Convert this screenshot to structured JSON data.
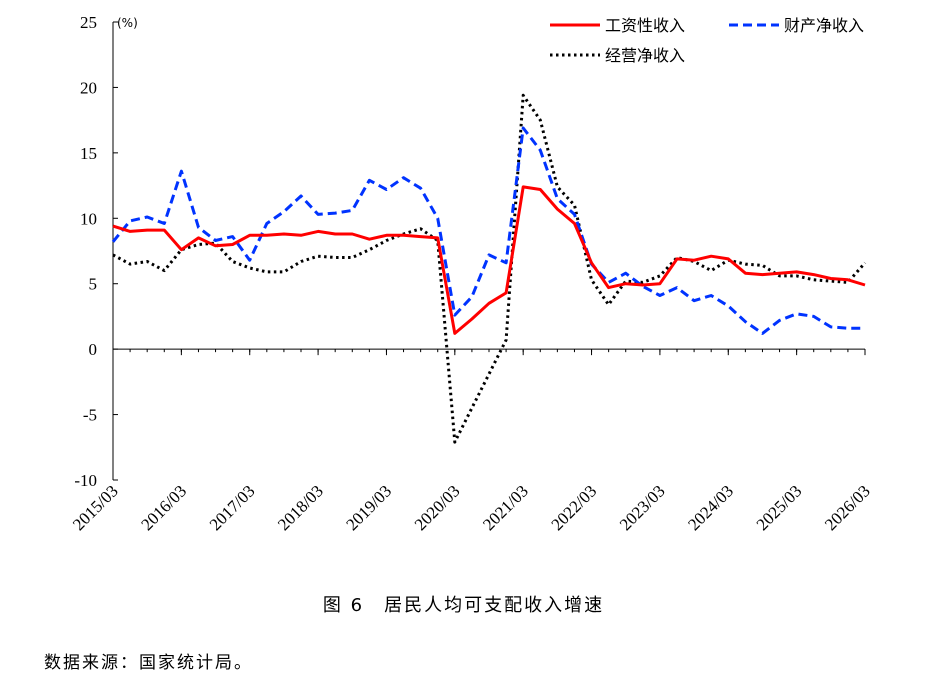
{
  "chart_data": {
    "type": "line",
    "title": "图 6　居民人均可支配收入增速",
    "unit": "(%)",
    "ylim": [
      -10,
      25
    ],
    "yticks": [
      25,
      20,
      15,
      10,
      5,
      0,
      -5,
      -10
    ],
    "xticks": [
      "2015/03",
      "2016/03",
      "2017/03",
      "2018/03",
      "2019/03",
      "2020/03",
      "2021/03",
      "2022/03",
      "2023/03",
      "2024/03",
      "2025/03",
      "2026/03"
    ],
    "x": [
      "2015/03",
      "2015/06",
      "2015/09",
      "2015/12",
      "2016/03",
      "2016/06",
      "2016/09",
      "2016/12",
      "2017/03",
      "2017/06",
      "2017/09",
      "2017/12",
      "2018/03",
      "2018/06",
      "2018/09",
      "2018/12",
      "2019/03",
      "2019/06",
      "2019/09",
      "2019/12",
      "2020/03",
      "2020/06",
      "2020/09",
      "2020/12",
      "2021/03",
      "2021/06",
      "2021/09",
      "2021/12",
      "2022/03",
      "2022/06",
      "2022/09",
      "2022/12",
      "2023/03",
      "2023/06",
      "2023/09",
      "2023/12",
      "2024/03",
      "2024/06",
      "2024/09",
      "2024/12",
      "2025/03",
      "2025/06",
      "2025/09",
      "2025/12",
      "2026/03"
    ],
    "legend_position": "top-right",
    "series": [
      {
        "name": "工资性收入",
        "color": "#ff0000",
        "style": "solid",
        "values": [
          9.4,
          9.0,
          9.1,
          9.1,
          7.6,
          8.5,
          7.9,
          8.0,
          8.7,
          8.7,
          8.8,
          8.7,
          9.0,
          8.8,
          8.8,
          8.4,
          8.7,
          8.7,
          8.6,
          8.5,
          1.2,
          2.3,
          3.5,
          4.3,
          12.4,
          12.2,
          10.7,
          9.6,
          6.6,
          4.7,
          5.0,
          4.9,
          5.0,
          6.9,
          6.8,
          7.1,
          6.9,
          5.8,
          5.7,
          5.8,
          5.9,
          5.7,
          5.4,
          5.3,
          4.9
        ]
      },
      {
        "name": "财产净收入",
        "color": "#0033ff",
        "style": "dashed",
        "values": [
          8.2,
          9.8,
          10.1,
          9.6,
          13.6,
          9.3,
          8.3,
          8.6,
          6.8,
          9.6,
          10.5,
          11.7,
          10.3,
          10.4,
          10.6,
          12.9,
          12.2,
          13.1,
          12.3,
          10.0,
          2.6,
          4.0,
          7.2,
          6.6,
          16.9,
          15.2,
          11.5,
          10.3,
          6.5,
          5.1,
          5.8,
          4.8,
          4.1,
          4.7,
          3.7,
          4.1,
          3.3,
          2.1,
          1.2,
          2.2,
          2.7,
          2.5,
          1.7,
          1.6,
          1.6
        ]
      },
      {
        "name": "经营净收入",
        "color": "#000000",
        "style": "dotted",
        "values": [
          7.2,
          6.5,
          6.7,
          6.0,
          7.6,
          8.0,
          8.1,
          6.7,
          6.2,
          5.9,
          5.9,
          6.7,
          7.1,
          7.0,
          7.0,
          7.6,
          8.3,
          8.8,
          9.2,
          8.3,
          -7.1,
          -4.5,
          -1.9,
          0.7,
          19.4,
          17.5,
          12.4,
          11.0,
          5.3,
          3.4,
          5.2,
          5.1,
          5.6,
          7.0,
          6.7,
          6.0,
          6.8,
          6.5,
          6.4,
          5.6,
          5.6,
          5.3,
          5.2,
          5.1,
          6.6
        ]
      }
    ]
  },
  "caption": "图 6　居民人均可支配收入增速",
  "source": "数据来源：国家统计局。"
}
